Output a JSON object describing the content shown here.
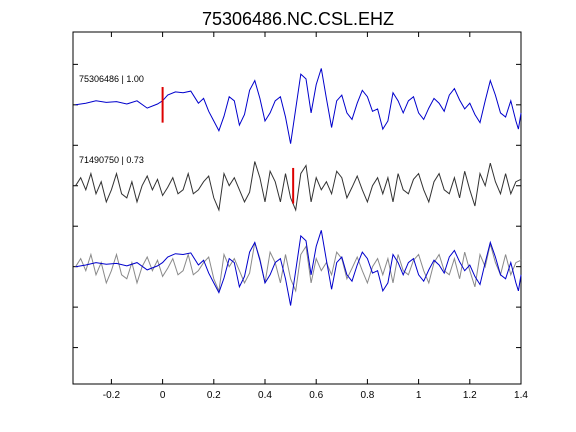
{
  "chart_data": {
    "type": "line",
    "title": "75306486.NC.CSL.EHZ",
    "xlabel": "",
    "ylabel": "",
    "xlim": [
      -0.35,
      1.4
    ],
    "xticks": [
      -0.2,
      0,
      0.2,
      0.4,
      0.6,
      0.8,
      1,
      1.2,
      1.4
    ],
    "xtick_labels": [
      "-0.2",
      "0",
      "0.2",
      "0.4",
      "0.6",
      "0.8",
      "1",
      "1.2",
      "1.4"
    ],
    "ylim": [
      -3.45,
      0.9
    ],
    "yticks": [
      -3,
      -2.5,
      -2,
      -1.5,
      -1,
      -0.5,
      0,
      0.5
    ],
    "grid": false,
    "legend": "none",
    "colors": {
      "primary": "#0000cc",
      "secondary": "#333333",
      "overlay_secondary": "#8a8a8a",
      "pick": "#dd0000"
    },
    "traces": [
      {
        "label": "75306486 | 1.00",
        "offset": 0,
        "color": "#0000cc",
        "pick_time": 0.0
      },
      {
        "label": "71490750 | 0.73",
        "offset": -1,
        "color": "#333333",
        "pick_time": 0.51
      },
      {
        "label": "",
        "offset": -2,
        "overlay": true
      }
    ],
    "series": [
      {
        "values": [
          [
            -0.34,
            0.0
          ],
          [
            -0.3,
            0.02
          ],
          [
            -0.26,
            0.05
          ],
          [
            -0.22,
            0.03
          ],
          [
            -0.18,
            0.04
          ],
          [
            -0.14,
            0.01
          ],
          [
            -0.1,
            0.05
          ],
          [
            -0.06,
            -0.04
          ],
          [
            -0.02,
            0.01
          ],
          [
            0.0,
            0.05
          ],
          [
            0.02,
            0.12
          ],
          [
            0.05,
            0.16
          ],
          [
            0.08,
            0.15
          ],
          [
            0.11,
            0.17
          ],
          [
            0.14,
            0.02
          ],
          [
            0.16,
            0.08
          ],
          [
            0.18,
            -0.08
          ],
          [
            0.2,
            -0.2
          ],
          [
            0.22,
            -0.32
          ],
          [
            0.24,
            -0.14
          ],
          [
            0.26,
            0.1
          ],
          [
            0.28,
            0.05
          ],
          [
            0.3,
            -0.25
          ],
          [
            0.32,
            -0.12
          ],
          [
            0.34,
            0.18
          ],
          [
            0.36,
            0.3
          ],
          [
            0.38,
            0.08
          ],
          [
            0.4,
            -0.2
          ],
          [
            0.42,
            -0.1
          ],
          [
            0.44,
            0.05
          ],
          [
            0.46,
            0.1
          ],
          [
            0.48,
            -0.15
          ],
          [
            0.5,
            -0.48
          ],
          [
            0.52,
            -0.05
          ],
          [
            0.54,
            0.38
          ],
          [
            0.56,
            0.32
          ],
          [
            0.58,
            -0.1
          ],
          [
            0.6,
            0.25
          ],
          [
            0.62,
            0.45
          ],
          [
            0.64,
            0.08
          ],
          [
            0.66,
            -0.28
          ],
          [
            0.68,
            0.05
          ],
          [
            0.7,
            0.12
          ],
          [
            0.72,
            -0.1
          ],
          [
            0.74,
            -0.18
          ],
          [
            0.76,
            0.02
          ],
          [
            0.78,
            0.18
          ],
          [
            0.8,
            0.1
          ],
          [
            0.82,
            -0.08
          ],
          [
            0.84,
            -0.05
          ],
          [
            0.86,
            -0.3
          ],
          [
            0.88,
            -0.2
          ],
          [
            0.9,
            0.15
          ],
          [
            0.92,
            0.05
          ],
          [
            0.94,
            -0.1
          ],
          [
            0.96,
            0.05
          ],
          [
            0.98,
            0.1
          ],
          [
            1.0,
            -0.1
          ],
          [
            1.02,
            -0.18
          ],
          [
            1.04,
            -0.04
          ],
          [
            1.06,
            0.08
          ],
          [
            1.08,
            0.02
          ],
          [
            1.1,
            -0.08
          ],
          [
            1.12,
            0.12
          ],
          [
            1.14,
            0.2
          ],
          [
            1.16,
            0.06
          ],
          [
            1.18,
            -0.05
          ],
          [
            1.2,
            0.02
          ],
          [
            1.22,
            -0.12
          ],
          [
            1.24,
            -0.22
          ],
          [
            1.26,
            0.05
          ],
          [
            1.28,
            0.3
          ],
          [
            1.3,
            0.12
          ],
          [
            1.32,
            -0.1
          ],
          [
            1.34,
            -0.15
          ],
          [
            1.36,
            0.05
          ],
          [
            1.38,
            -0.2
          ],
          [
            1.39,
            -0.3
          ],
          [
            1.4,
            -0.1
          ]
        ]
      },
      {
        "values": [
          [
            -0.34,
            -1.0
          ],
          [
            -0.32,
            -0.9
          ],
          [
            -0.3,
            -1.05
          ],
          [
            -0.28,
            -0.85
          ],
          [
            -0.26,
            -1.1
          ],
          [
            -0.24,
            -0.95
          ],
          [
            -0.22,
            -1.2
          ],
          [
            -0.2,
            -1.05
          ],
          [
            -0.18,
            -0.85
          ],
          [
            -0.16,
            -1.1
          ],
          [
            -0.14,
            -1.15
          ],
          [
            -0.12,
            -0.95
          ],
          [
            -0.1,
            -1.2
          ],
          [
            -0.08,
            -1.0
          ],
          [
            -0.06,
            -0.88
          ],
          [
            -0.04,
            -1.05
          ],
          [
            -0.02,
            -0.92
          ],
          [
            0.0,
            -1.12
          ],
          [
            0.02,
            -1.02
          ],
          [
            0.04,
            -0.9
          ],
          [
            0.06,
            -1.1
          ],
          [
            0.08,
            -1.05
          ],
          [
            0.1,
            -0.85
          ],
          [
            0.12,
            -1.1
          ],
          [
            0.14,
            -1.05
          ],
          [
            0.16,
            -0.95
          ],
          [
            0.18,
            -0.88
          ],
          [
            0.2,
            -1.15
          ],
          [
            0.22,
            -1.3
          ],
          [
            0.24,
            -0.85
          ],
          [
            0.26,
            -1.0
          ],
          [
            0.28,
            -0.9
          ],
          [
            0.3,
            -1.05
          ],
          [
            0.32,
            -1.2
          ],
          [
            0.34,
            -1.08
          ],
          [
            0.36,
            -0.7
          ],
          [
            0.38,
            -0.9
          ],
          [
            0.4,
            -1.2
          ],
          [
            0.42,
            -0.82
          ],
          [
            0.44,
            -0.95
          ],
          [
            0.46,
            -1.2
          ],
          [
            0.48,
            -0.85
          ],
          [
            0.5,
            -1.15
          ],
          [
            0.52,
            -1.3
          ],
          [
            0.54,
            -0.85
          ],
          [
            0.56,
            -0.75
          ],
          [
            0.58,
            -1.2
          ],
          [
            0.6,
            -0.9
          ],
          [
            0.62,
            -1.05
          ],
          [
            0.64,
            -0.95
          ],
          [
            0.66,
            -1.1
          ],
          [
            0.68,
            -0.82
          ],
          [
            0.7,
            -0.9
          ],
          [
            0.72,
            -1.15
          ],
          [
            0.74,
            -1.02
          ],
          [
            0.76,
            -0.88
          ],
          [
            0.78,
            -1.05
          ],
          [
            0.8,
            -1.2
          ],
          [
            0.82,
            -1.0
          ],
          [
            0.84,
            -0.9
          ],
          [
            0.86,
            -1.1
          ],
          [
            0.88,
            -0.9
          ],
          [
            0.9,
            -1.2
          ],
          [
            0.92,
            -0.85
          ],
          [
            0.94,
            -1.05
          ],
          [
            0.96,
            -1.1
          ],
          [
            0.98,
            -0.92
          ],
          [
            1.0,
            -0.85
          ],
          [
            1.02,
            -1.05
          ],
          [
            1.04,
            -1.2
          ],
          [
            1.06,
            -0.95
          ],
          [
            1.08,
            -0.85
          ],
          [
            1.1,
            -1.05
          ],
          [
            1.12,
            -1.1
          ],
          [
            1.14,
            -0.9
          ],
          [
            1.16,
            -1.15
          ],
          [
            1.18,
            -0.82
          ],
          [
            1.2,
            -1.05
          ],
          [
            1.22,
            -1.25
          ],
          [
            1.24,
            -0.85
          ],
          [
            1.26,
            -1.0
          ],
          [
            1.28,
            -0.72
          ],
          [
            1.3,
            -0.95
          ],
          [
            1.32,
            -1.1
          ],
          [
            1.34,
            -0.85
          ],
          [
            1.36,
            -1.1
          ],
          [
            1.38,
            -0.95
          ],
          [
            1.4,
            -0.92
          ]
        ]
      }
    ]
  }
}
